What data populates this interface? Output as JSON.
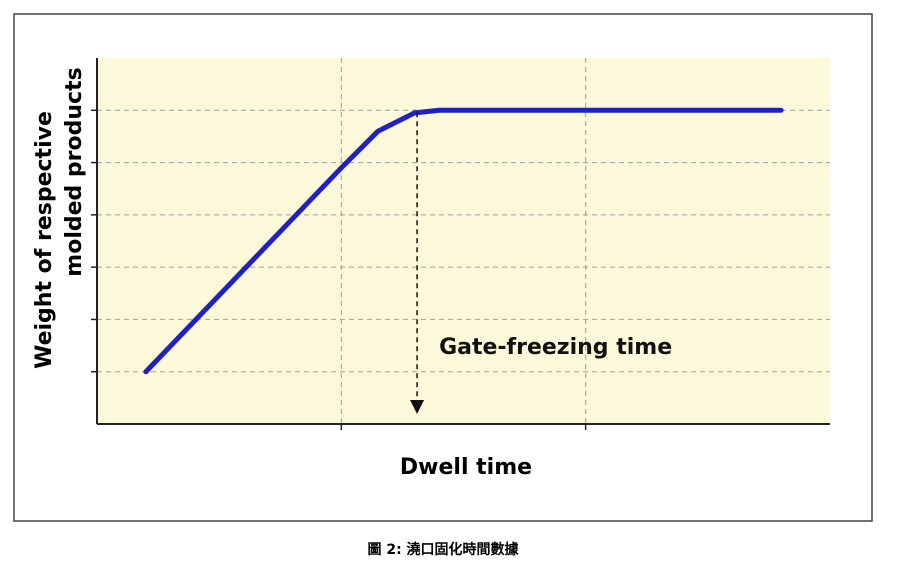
{
  "chart_data": {
    "type": "line",
    "ylabel": [
      "Weight of respective",
      "molded products"
    ],
    "xlabel": "Dwell time",
    "annotation": {
      "text": "Gate-freezing time",
      "x": 1.31
    },
    "caption": "圖 2: 澆口固化時間數據",
    "x": [
      0.2,
      1.0,
      1.15,
      1.3,
      1.4,
      2.8
    ],
    "series": [
      {
        "color": "#2020c8",
        "values": [
          1,
          4.9,
          5.6,
          5.95,
          6,
          6
        ]
      }
    ],
    "xlim": [
      0,
      3
    ],
    "xticks": [
      1,
      2
    ],
    "ylim": [
      0,
      7
    ],
    "yticks": [
      1,
      2,
      3,
      4,
      5,
      6
    ],
    "grid": true
  }
}
